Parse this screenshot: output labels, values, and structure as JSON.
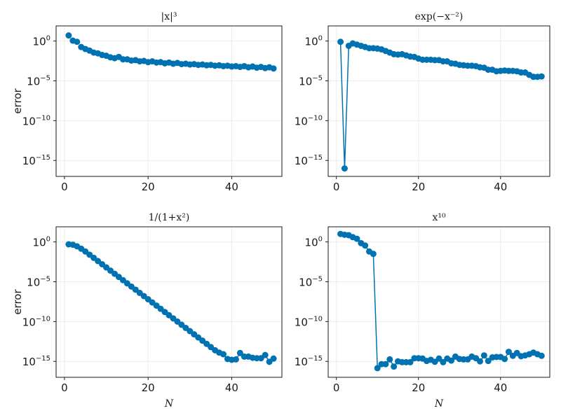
{
  "figure": {
    "y_axis_label": "error",
    "x_axis_label": "N",
    "series_color": "#0072b2",
    "x_ticks": [
      0,
      20,
      40
    ],
    "y_tick_exponents": [
      0,
      -5,
      -10,
      -15
    ]
  },
  "chart_data": [
    {
      "type": "scatter",
      "title": "|x|³",
      "xlabel": "",
      "ylabel": "error",
      "xlim": [
        -2,
        52
      ],
      "ylim_log10": [
        -17,
        1.9
      ],
      "x": [
        1,
        2,
        3,
        4,
        5,
        6,
        7,
        8,
        9,
        10,
        11,
        12,
        13,
        14,
        15,
        16,
        17,
        18,
        19,
        20,
        21,
        22,
        23,
        24,
        25,
        26,
        27,
        28,
        29,
        30,
        31,
        32,
        33,
        34,
        35,
        36,
        37,
        38,
        39,
        40,
        41,
        42,
        43,
        44,
        45,
        46,
        47,
        48,
        49,
        50
      ],
      "log10_values": [
        0.7,
        0.05,
        -0.1,
        -0.75,
        -1.0,
        -1.2,
        -1.45,
        -1.55,
        -1.75,
        -1.85,
        -2.05,
        -2.15,
        -2.0,
        -2.3,
        -2.3,
        -2.45,
        -2.4,
        -2.55,
        -2.5,
        -2.65,
        -2.55,
        -2.7,
        -2.65,
        -2.8,
        -2.7,
        -2.85,
        -2.75,
        -2.9,
        -2.85,
        -2.95,
        -2.9,
        -3.0,
        -2.95,
        -3.05,
        -3.0,
        -3.1,
        -3.05,
        -3.15,
        -3.1,
        -3.2,
        -3.15,
        -3.25,
        -3.15,
        -3.3,
        -3.2,
        -3.35,
        -3.25,
        -3.4,
        -3.3,
        -3.45
      ],
      "connected": false
    },
    {
      "type": "line",
      "title": "exp(−x⁻²)",
      "xlabel": "",
      "ylabel": "",
      "xlim": [
        -2,
        52
      ],
      "ylim_log10": [
        -17,
        1.9
      ],
      "x": [
        1,
        2,
        3,
        4,
        5,
        6,
        7,
        8,
        9,
        10,
        11,
        12,
        13,
        14,
        15,
        16,
        17,
        18,
        19,
        20,
        21,
        22,
        23,
        24,
        25,
        26,
        27,
        28,
        29,
        30,
        31,
        32,
        33,
        34,
        35,
        36,
        37,
        38,
        39,
        40,
        41,
        42,
        43,
        44,
        45,
        46,
        47,
        48,
        49,
        50
      ],
      "log10_values": [
        -0.1,
        -16.0,
        -0.6,
        -0.3,
        -0.45,
        -0.6,
        -0.75,
        -0.9,
        -0.9,
        -0.95,
        -1.05,
        -1.25,
        -1.45,
        -1.65,
        -1.7,
        -1.65,
        -1.8,
        -1.95,
        -2.0,
        -2.2,
        -2.35,
        -2.35,
        -2.35,
        -2.4,
        -2.4,
        -2.55,
        -2.55,
        -2.8,
        -2.85,
        -3.0,
        -3.05,
        -3.1,
        -3.1,
        -3.15,
        -3.3,
        -3.35,
        -3.6,
        -3.6,
        -3.8,
        -3.75,
        -3.7,
        -3.75,
        -3.75,
        -3.8,
        -3.95,
        -3.95,
        -4.25,
        -4.5,
        -4.5,
        -4.45
      ],
      "connected": true
    },
    {
      "type": "scatter",
      "title": "1/(1+x²)",
      "xlabel": "N",
      "ylabel": "error",
      "xlim": [
        -2,
        52
      ],
      "ylim_log10": [
        -17,
        1.9
      ],
      "x": [
        1,
        2,
        3,
        4,
        5,
        6,
        7,
        8,
        9,
        10,
        11,
        12,
        13,
        14,
        15,
        16,
        17,
        18,
        19,
        20,
        21,
        22,
        23,
        24,
        25,
        26,
        27,
        28,
        29,
        30,
        31,
        32,
        33,
        34,
        35,
        36,
        37,
        38,
        39,
        40,
        41,
        42,
        43,
        44,
        45,
        46,
        47,
        48,
        49,
        50
      ],
      "log10_values": [
        -0.3,
        -0.35,
        -0.55,
        -0.85,
        -1.2,
        -1.6,
        -2.0,
        -2.4,
        -2.8,
        -3.2,
        -3.6,
        -4.0,
        -4.4,
        -4.8,
        -5.2,
        -5.6,
        -6.0,
        -6.4,
        -6.8,
        -7.2,
        -7.6,
        -8.0,
        -8.4,
        -8.8,
        -9.2,
        -9.6,
        -10.0,
        -10.4,
        -10.8,
        -11.2,
        -11.6,
        -12.0,
        -12.4,
        -12.8,
        -13.2,
        -13.6,
        -13.9,
        -14.1,
        -14.7,
        -14.8,
        -14.75,
        -13.95,
        -14.4,
        -14.4,
        -14.55,
        -14.6,
        -14.6,
        -14.2,
        -15.05,
        -14.65
      ],
      "connected": true
    },
    {
      "type": "line",
      "title": "x¹⁰",
      "xlabel": "N",
      "ylabel": "",
      "xlim": [
        -2,
        52
      ],
      "ylim_log10": [
        -17,
        1.9
      ],
      "x": [
        1,
        2,
        3,
        4,
        5,
        6,
        7,
        8,
        9,
        10,
        11,
        12,
        13,
        14,
        15,
        16,
        17,
        18,
        19,
        20,
        21,
        22,
        23,
        24,
        25,
        26,
        27,
        28,
        29,
        30,
        31,
        32,
        33,
        34,
        35,
        36,
        37,
        38,
        39,
        40,
        41,
        42,
        43,
        44,
        45,
        46,
        47,
        48,
        49,
        50
      ],
      "log10_values": [
        1.0,
        0.9,
        0.85,
        0.6,
        0.4,
        -0.15,
        -0.45,
        -1.2,
        -1.5,
        -15.85,
        -15.35,
        -15.35,
        -14.75,
        -15.65,
        -15.0,
        -15.1,
        -15.1,
        -15.1,
        -14.6,
        -14.6,
        -14.65,
        -14.95,
        -14.8,
        -15.05,
        -14.65,
        -15.1,
        -14.65,
        -14.9,
        -14.4,
        -14.7,
        -14.75,
        -14.75,
        -14.4,
        -14.6,
        -15.0,
        -14.25,
        -14.95,
        -14.5,
        -14.45,
        -14.45,
        -14.7,
        -13.8,
        -14.3,
        -13.95,
        -14.35,
        -14.25,
        -14.1,
        -13.9,
        -14.1,
        -14.3
      ],
      "connected": true
    }
  ]
}
